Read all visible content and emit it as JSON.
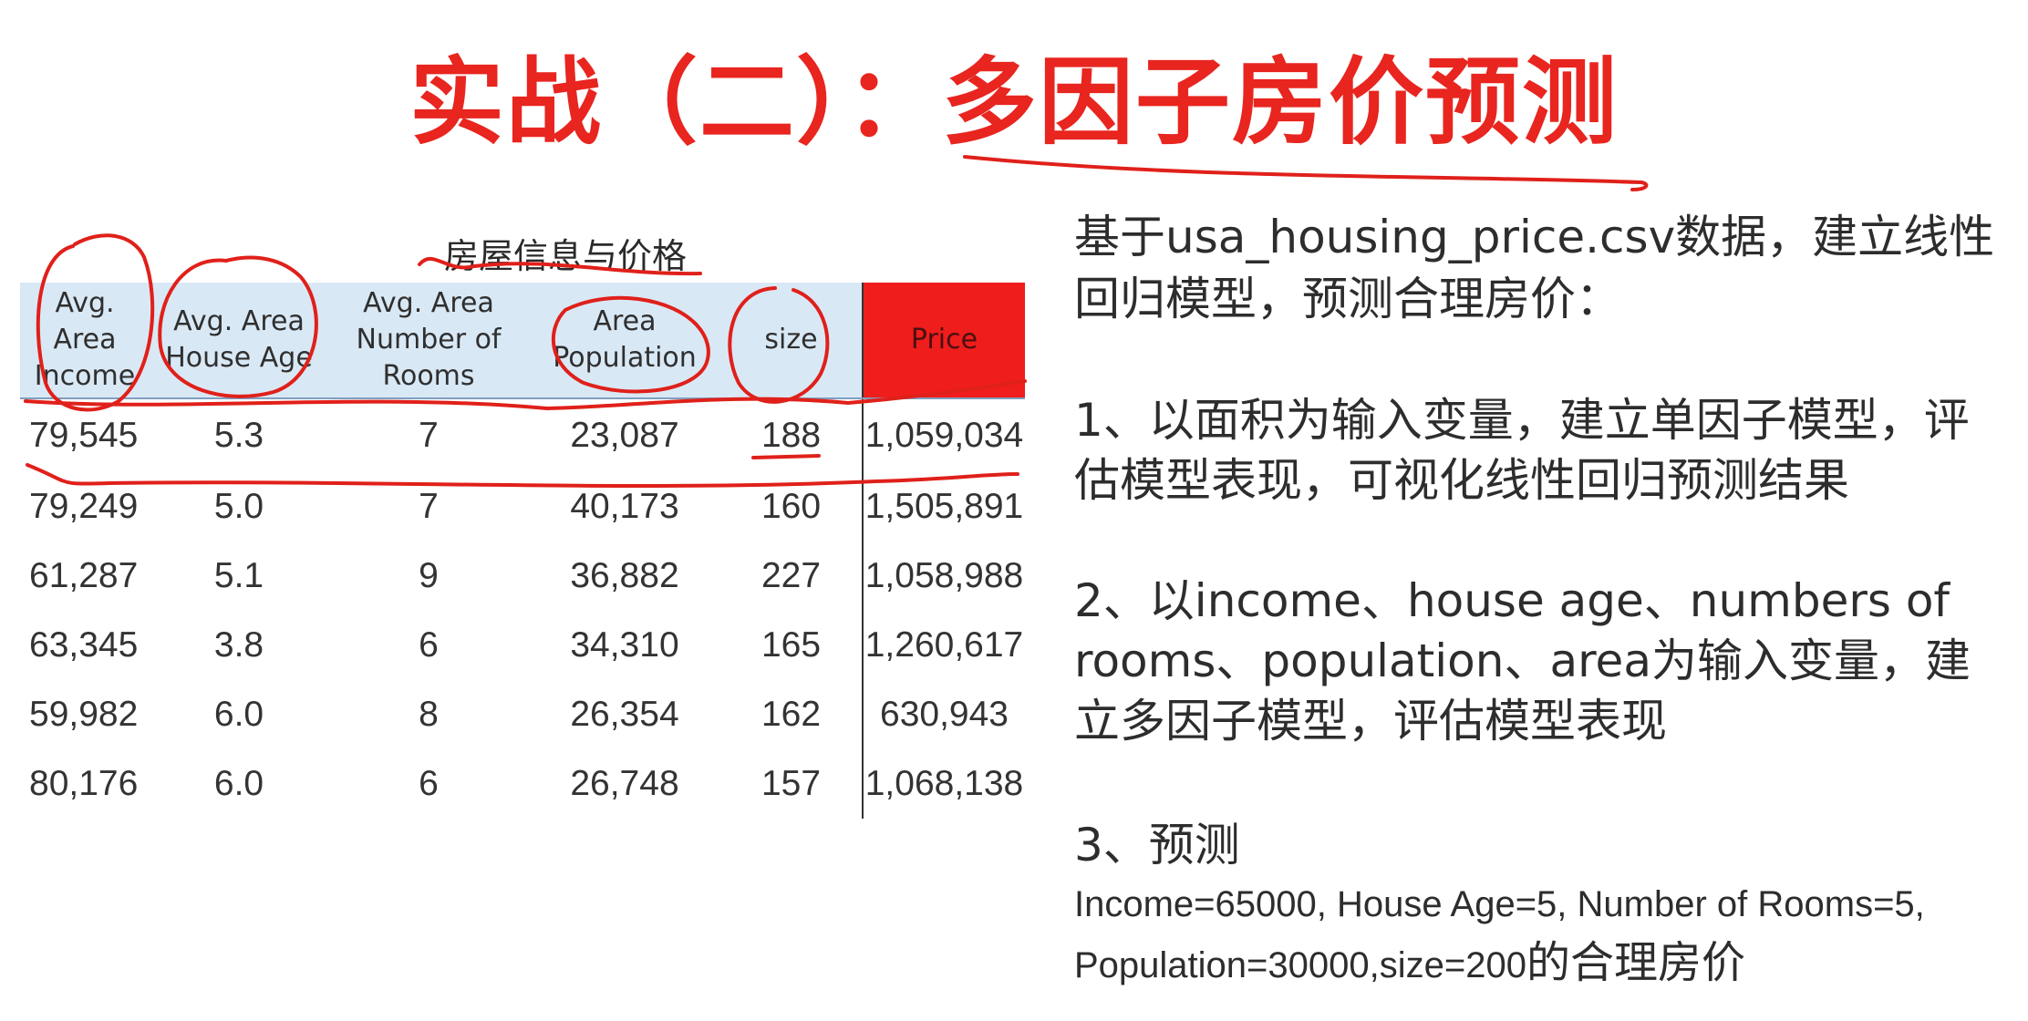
{
  "title": "实战（二）：多因子房价预测",
  "table": {
    "caption": "房屋信息与价格",
    "headers": [
      "Avg.\nArea\nIncome",
      "Avg. Area\nHouse Age",
      "Avg. Area\nNumber of\nRooms",
      "Area\nPopulation",
      "size",
      "Price"
    ],
    "rows": [
      [
        "79,545",
        "5.3",
        "7",
        "23,087",
        "188",
        "1,059,034"
      ],
      [
        "79,249",
        "5.0",
        "7",
        "40,173",
        "160",
        "1,505,891"
      ],
      [
        "61,287",
        "5.1",
        "9",
        "36,882",
        "227",
        "1,058,988"
      ],
      [
        "63,345",
        "3.8",
        "6",
        "34,310",
        "165",
        "1,260,617"
      ],
      [
        "59,982",
        "6.0",
        "8",
        "26,354",
        "162",
        "630,943"
      ],
      [
        "80,176",
        "6.0",
        "6",
        "26,748",
        "157",
        "1,068,138"
      ]
    ]
  },
  "task": {
    "intro": "基于usa_housing_price.csv数据，建立线性回归模型，预测合理房价：",
    "step1": "1、以面积为输入变量，建立单因子模型，评估模型表现，可视化线性回归预测结果",
    "step2": "2、以income、house age、numbers of rooms、population、area为输入变量，建立多因子模型，评估模型表现",
    "step3": "3、预测",
    "step3_detail_a": "Income=65000, House Age=5, Number of Rooms=5,",
    "step3_detail_b": "Population=30000,size=200",
    "step3_detail_c": "的合理房价"
  },
  "colors": {
    "title": "#e8251f",
    "header_bg": "#d9e8f5",
    "price_header_bg": "#f01d1d",
    "annotation_ink": "#e0201a"
  }
}
